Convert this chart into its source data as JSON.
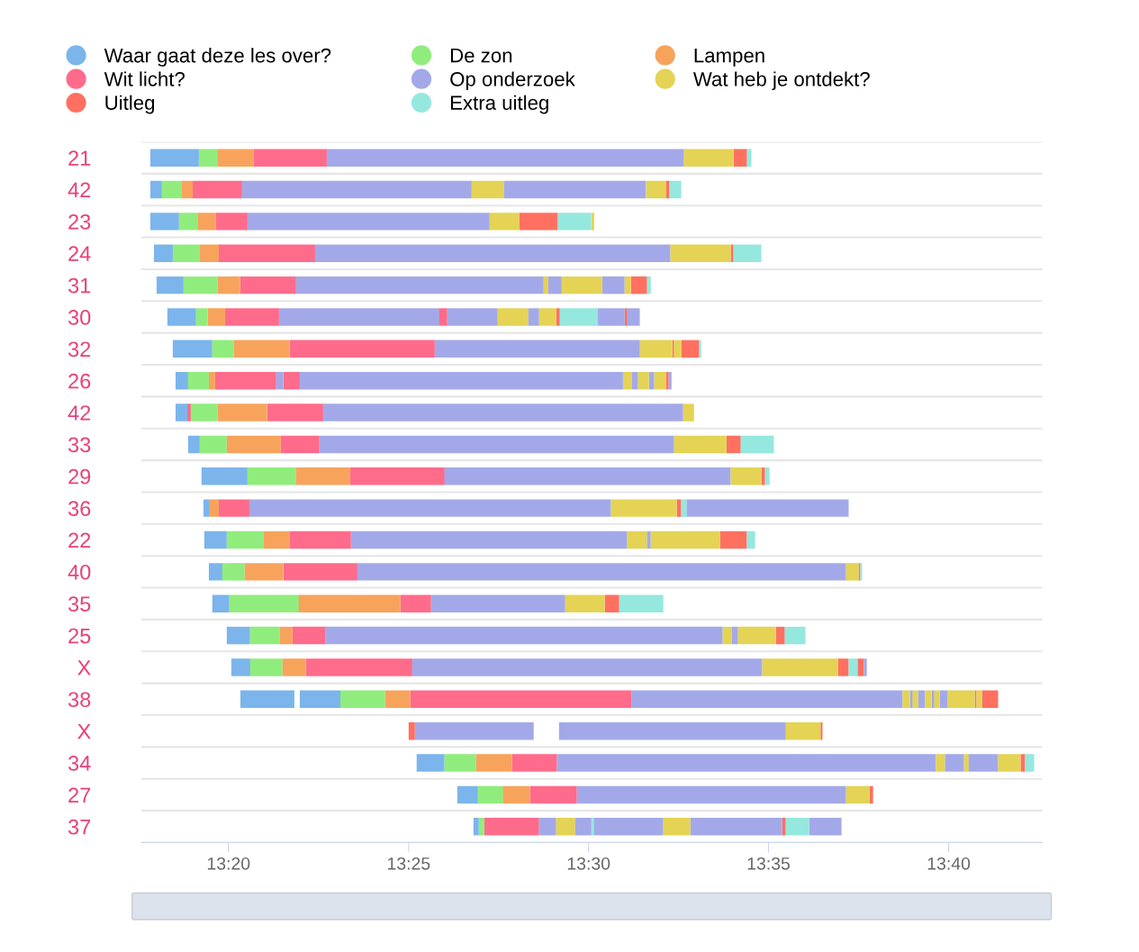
{
  "chart_data": {
    "type": "bar",
    "orientation": "horizontal",
    "legend": "top",
    "grid": "y",
    "categories": [
      "21",
      "42",
      "23",
      "24",
      "31",
      "30",
      "32",
      "26",
      "42",
      "33",
      "29",
      "36",
      "22",
      "40",
      "35",
      "25",
      "X",
      "38",
      "X",
      "34",
      "27",
      "37"
    ],
    "xlim": [
      13.2929,
      13.71
    ],
    "xticks": [
      {
        "value": 13.3333,
        "label": "13:20"
      },
      {
        "value": 13.4167,
        "label": "13:25"
      },
      {
        "value": 13.5,
        "label": "13:30"
      },
      {
        "value": 13.5833,
        "label": "13:35"
      },
      {
        "value": 13.6667,
        "label": "13:40"
      }
    ],
    "series": [
      {
        "name": "Waar gaat deze les over?",
        "color": "#7cb5ec",
        "base": [
          13.2971,
          13.2971,
          13.2971,
          13.2988,
          13.3,
          13.305,
          13.3075,
          13.3088,
          13.3088,
          13.3146,
          13.3208,
          13.3217,
          13.3221,
          13.3242,
          13.3258,
          13.3325,
          13.3346,
          13.3388,
          null,
          13.4204,
          13.4392,
          13.4467
        ],
        "values": [
          0.0225,
          0.0054,
          0.0133,
          0.0088,
          0.0125,
          0.0133,
          0.0183,
          0.0058,
          0.0054,
          0.0054,
          0.0213,
          0.0029,
          0.0104,
          0.0063,
          0.0079,
          0.0108,
          0.0088,
          0.025,
          null,
          0.0129,
          0.0096,
          0.0025
        ]
      },
      {
        "name": "Wit licht?",
        "color": "#ff6b8b",
        "base": [
          13.345,
          13.3167,
          13.3275,
          13.3288,
          13.3388,
          13.3317,
          13.3617,
          13.3271,
          13.3142,
          13.3575,
          13.3896,
          13.3288,
          13.3617,
          13.3588,
          13.4129,
          13.3629,
          13.3692,
          13.4175,
          null,
          13.4646,
          13.4729,
          13.4517
        ],
        "values": [
          0.0338,
          0.0229,
          0.0146,
          0.0446,
          0.0258,
          0.025,
          0.0671,
          0.0283,
          0.0017,
          0.0179,
          0.0438,
          0.0142,
          0.0283,
          0.0342,
          0.0142,
          0.0154,
          0.0492,
          0.1025,
          null,
          0.0208,
          0.0217,
          0.0254
        ]
      },
      {
        "name": "Uitleg",
        "color": "#ff7060",
        "base": [
          13.5671,
          13.5358,
          13.4679,
          13.5658,
          13.5196,
          13.485,
          13.5388,
          13.5358,
          null,
          13.5638,
          13.58,
          13.5408,
          13.5608,
          13.625,
          13.5075,
          13.5867,
          13.6154,
          13.6788,
          13.4167,
          13.7,
          13.63,
          13.5896
        ],
        "values": [
          0.0063,
          0.0017,
          0.0179,
          0.0013,
          0.0075,
          0.0017,
          0.0008,
          0.0013,
          null,
          0.0067,
          0.0017,
          0.0021,
          0.0125,
          0.0008,
          0.0067,
          0.0042,
          0.005,
          0.0008,
          0.0029,
          0.0021,
          0.0017,
          0.0017
        ]
      },
      {
        "name": "De zon",
        "color": "#90ed7d",
        "base": [
          13.3196,
          13.3025,
          13.3104,
          13.3075,
          13.3125,
          13.3183,
          13.3258,
          13.3146,
          13.3158,
          13.32,
          13.3421,
          null,
          13.3325,
          13.3304,
          13.3338,
          13.3433,
          13.3433,
          13.385,
          null,
          13.4333,
          13.4488,
          13.4492
        ],
        "values": [
          0.0088,
          0.0092,
          0.0088,
          0.0125,
          0.0158,
          0.0054,
          0.01,
          0.0096,
          0.0125,
          0.0125,
          0.0225,
          null,
          0.0171,
          0.0104,
          0.0321,
          0.0138,
          0.015,
          0.0208,
          null,
          0.0146,
          0.0117,
          0.0025
        ]
      },
      {
        "name": "Op onderzoek",
        "color": "#a3a9e8",
        "base": [
          13.3788,
          13.3396,
          13.3421,
          13.3733,
          13.3646,
          13.3567,
          13.4288,
          13.3554,
          13.3771,
          13.3754,
          13.4333,
          13.3429,
          13.39,
          13.3929,
          13.4271,
          13.3783,
          13.4183,
          13.52,
          13.4196,
          13.4854,
          13.4946,
          13.4771
        ],
        "values": [
          0.1654,
          0.1063,
          0.1121,
          0.1646,
          0.1146,
          0.0742,
          0.095,
          0.0033,
          0.1667,
          0.1642,
          0.1325,
          0.1675,
          0.1279,
          0.2263,
          0.0621,
          0.1838,
          0.1621,
          0.1254,
          0.055,
          0.1754,
          0.1246,
          0.0079
        ]
      },
      {
        "name": "Extra uitleg",
        "color": "#95e8de",
        "base": [
          13.5733,
          13.5375,
          13.4858,
          13.5671,
          13.5271,
          13.4867,
          13.5513,
          null,
          null,
          13.5704,
          13.5817,
          13.5429,
          13.5733,
          13.6258,
          13.5142,
          13.5908,
          13.6204,
          null,
          null,
          13.7021,
          null,
          13.5013
        ],
        "values": [
          0.0021,
          0.0054,
          0.0154,
          0.0129,
          0.0017,
          0.0175,
          0.0008,
          null,
          null,
          0.0154,
          0.0021,
          0.0025,
          0.0038,
          0.0008,
          0.0204,
          0.0096,
          0.0042,
          null,
          null,
          0.0042,
          null,
          0.0013
        ]
      },
      {
        "name": "Lampen",
        "color": "#f7a35c",
        "base": [
          13.3283,
          13.3117,
          13.3192,
          13.32,
          13.3283,
          13.3238,
          13.3358,
          13.3242,
          13.3283,
          13.3325,
          13.3646,
          13.3246,
          13.3496,
          13.3408,
          13.3658,
          13.3571,
          13.3583,
          13.4058,
          null,
          13.4479,
          13.4604,
          null
        ],
        "values": [
          0.0167,
          0.005,
          0.0083,
          0.0088,
          0.0104,
          0.0079,
          0.0258,
          0.0029,
          0.0229,
          0.025,
          0.025,
          0.0042,
          0.0121,
          0.0179,
          0.0471,
          0.0058,
          0.0108,
          0.0117,
          null,
          0.0167,
          0.0125,
          null
        ]
      },
      {
        "name": "Wat heb je ontdekt?",
        "color": "#e4d354",
        "base": [
          13.5442,
          13.4458,
          13.4542,
          13.5379,
          13.4792,
          13.4579,
          13.5238,
          13.5158,
          13.5438,
          13.5396,
          13.5658,
          13.5104,
          13.5179,
          13.6192,
          13.4892,
          13.5621,
          13.5804,
          13.6454,
          13.5913,
          13.6608,
          13.6192,
          13.485
        ],
        "values": [
          0.0229,
          0.015,
          0.0138,
          0.0279,
          0.0021,
          0.0142,
          0.015,
          0.0042,
          0.005,
          0.0242,
          0.0142,
          0.0304,
          0.0092,
          0.0058,
          0.0183,
          0.0042,
          0.035,
          0.0033,
          0.0163,
          0.0042,
          0.0108,
          0.0088
        ]
      },
      {
        "color": "#7cb5ec",
        "base": [
          null,
          null,
          null,
          null,
          null,
          null,
          null,
          null,
          null,
          null,
          null,
          null,
          null,
          null,
          null,
          null,
          null,
          13.3663,
          null,
          null,
          null,
          null
        ],
        "values": [
          null,
          null,
          null,
          null,
          null,
          null,
          null,
          null,
          null,
          null,
          null,
          null,
          null,
          null,
          null,
          null,
          null,
          0.0188,
          null,
          null,
          null,
          null
        ]
      },
      {
        "color": "#ff6b8b",
        "base": [
          null,
          null,
          null,
          null,
          null,
          13.4308,
          null,
          13.3588,
          13.3513,
          null,
          null,
          null,
          null,
          null,
          null,
          null,
          null,
          null,
          null,
          null,
          null,
          null
        ],
        "values": [
          null,
          null,
          null,
          null,
          null,
          0.0038,
          null,
          0.0075,
          0.0258,
          null,
          null,
          null,
          null,
          null,
          null,
          null,
          null,
          null,
          null,
          null,
          null,
          null
        ]
      },
      {
        "color": "#ff7060",
        "base": [
          null,
          null,
          null,
          null,
          null,
          13.5167,
          13.5429,
          null,
          null,
          null,
          null,
          null,
          null,
          null,
          null,
          null,
          13.6246,
          13.6821,
          13.6075,
          null,
          null,
          null
        ],
        "values": [
          null,
          null,
          null,
          null,
          null,
          0.0013,
          0.0083,
          null,
          null,
          null,
          null,
          null,
          null,
          null,
          null,
          null,
          0.0029,
          0.0075,
          0.0008,
          null,
          null,
          null
        ]
      },
      {
        "color": "#a3a9e8",
        "base": [
          null,
          13.4608,
          null,
          null,
          13.4813,
          13.4346,
          null,
          13.3663,
          null,
          null,
          null,
          13.5454,
          13.5271,
          null,
          null,
          13.5663,
          13.6275,
          13.6488,
          13.4863,
          13.665,
          null,
          13.4938
        ],
        "values": [
          null,
          0.0658,
          null,
          null,
          0.0063,
          0.0233,
          null,
          0.1496,
          null,
          null,
          null,
          0.075,
          0.0017,
          null,
          null,
          0.0029,
          0.0013,
          0.0013,
          0.105,
          0.0088,
          null,
          0.0075
        ]
      },
      {
        "color": "#a3a9e8",
        "base": [
          null,
          null,
          null,
          null,
          13.5063,
          13.4721,
          null,
          13.52,
          null,
          null,
          null,
          null,
          null,
          null,
          null,
          null,
          null,
          13.6525,
          null,
          13.6758,
          null,
          13.5025
        ],
        "values": [
          null,
          null,
          null,
          null,
          0.0104,
          0.005,
          null,
          0.0029,
          null,
          null,
          null,
          null,
          null,
          null,
          null,
          null,
          null,
          0.0033,
          null,
          0.0138,
          null,
          0.0321
        ]
      },
      {
        "color": "#a3a9e8",
        "base": [
          null,
          null,
          null,
          null,
          null,
          13.5042,
          null,
          13.5279,
          null,
          null,
          null,
          null,
          null,
          null,
          null,
          null,
          null,
          13.6588,
          null,
          null,
          null,
          13.5471
        ],
        "values": [
          null,
          null,
          null,
          null,
          null,
          0.0125,
          null,
          0.0025,
          null,
          null,
          null,
          null,
          null,
          null,
          null,
          null,
          null,
          0.0013,
          null,
          null,
          null,
          0.0425
        ]
      },
      {
        "color": "#a3a9e8",
        "base": [
          null,
          null,
          null,
          null,
          null,
          13.5179,
          null,
          13.5371,
          null,
          null,
          null,
          null,
          null,
          null,
          null,
          null,
          null,
          13.6625,
          null,
          null,
          null,
          13.6021
        ],
        "values": [
          null,
          null,
          null,
          null,
          null,
          0.0058,
          null,
          0.0013,
          null,
          null,
          null,
          null,
          null,
          null,
          null,
          null,
          null,
          0.0038,
          null,
          null,
          null,
          0.015
        ]
      },
      {
        "color": "#e4d354",
        "base": [
          null,
          13.5267,
          13.5013,
          null,
          13.4875,
          13.4771,
          13.5396,
          13.5229,
          null,
          null,
          null,
          null,
          13.5288,
          null,
          null,
          13.5692,
          null,
          13.65,
          null,
          13.6738,
          null,
          13.5346
        ],
        "values": [
          null,
          0.0092,
          0.0013,
          null,
          0.0188,
          0.0079,
          0.0033,
          0.005,
          null,
          null,
          null,
          null,
          0.0321,
          null,
          null,
          0.0175,
          null,
          0.0025,
          null,
          0.0021,
          null,
          0.0125
        ]
      },
      {
        "color": "#e4d354",
        "base": [
          null,
          null,
          null,
          null,
          13.5167,
          null,
          null,
          13.5304,
          null,
          null,
          null,
          null,
          null,
          null,
          null,
          null,
          null,
          13.6558,
          null,
          13.6896,
          null,
          null
        ],
        "values": [
          null,
          null,
          null,
          null,
          0.0029,
          null,
          null,
          0.0054,
          null,
          null,
          null,
          null,
          null,
          null,
          null,
          null,
          null,
          0.0029,
          null,
          0.0104,
          null,
          null
        ]
      },
      {
        "color": "#e4d354",
        "base": [
          null,
          null,
          null,
          null,
          null,
          null,
          null,
          null,
          null,
          null,
          null,
          null,
          null,
          null,
          null,
          null,
          null,
          13.66,
          null,
          null,
          null,
          null
        ],
        "values": [
          null,
          null,
          null,
          null,
          null,
          null,
          null,
          null,
          null,
          null,
          null,
          null,
          null,
          null,
          null,
          null,
          null,
          0.0025,
          null,
          null,
          null,
          null
        ]
      },
      {
        "color": "#e4d354",
        "base": [
          null,
          null,
          null,
          null,
          null,
          null,
          null,
          null,
          null,
          null,
          null,
          null,
          null,
          null,
          null,
          null,
          null,
          13.6663,
          null,
          null,
          null,
          null
        ],
        "values": [
          null,
          null,
          null,
          null,
          null,
          null,
          null,
          null,
          null,
          null,
          null,
          null,
          null,
          null,
          null,
          null,
          null,
          0.0125,
          null,
          null,
          null,
          null
        ]
      },
      {
        "color": "#e4d354",
        "base": [
          null,
          null,
          null,
          null,
          null,
          null,
          null,
          null,
          null,
          null,
          null,
          null,
          null,
          null,
          null,
          null,
          null,
          13.6796,
          null,
          null,
          null,
          null
        ],
        "values": [
          null,
          null,
          null,
          null,
          null,
          null,
          null,
          null,
          null,
          null,
          null,
          null,
          null,
          null,
          null,
          null,
          null,
          0.0025,
          null,
          null,
          null,
          null
        ]
      },
      {
        "color": "#95e8de",
        "base": [
          null,
          null,
          null,
          null,
          null,
          null,
          null,
          null,
          null,
          null,
          null,
          null,
          null,
          null,
          null,
          null,
          null,
          null,
          null,
          null,
          null,
          13.5913
        ],
        "values": [
          null,
          null,
          null,
          null,
          null,
          null,
          null,
          null,
          null,
          null,
          null,
          null,
          null,
          null,
          null,
          null,
          null,
          null,
          null,
          null,
          null,
          0.0108
        ]
      }
    ]
  }
}
